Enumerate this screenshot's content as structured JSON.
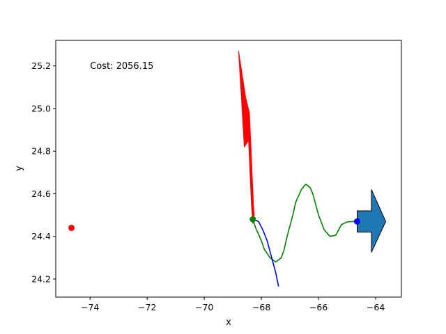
{
  "chart_data": {
    "type": "line",
    "title": "",
    "xlabel": "x",
    "ylabel": "y",
    "xlim": [
      -75.2,
      -63.1
    ],
    "ylim": [
      24.115,
      25.32
    ],
    "x_ticks": [
      -74,
      -72,
      -70,
      -68,
      -66,
      -64
    ],
    "x_tick_labels": [
      "−74",
      "−72",
      "−70",
      "−68",
      "−66",
      "−64"
    ],
    "y_ticks": [
      24.2,
      24.4,
      24.6,
      24.8,
      25.0,
      25.2
    ],
    "y_tick_labels": [
      "24.2",
      "24.4",
      "24.6",
      "24.8",
      "25.0",
      "25.2"
    ],
    "grid": false,
    "annotation": {
      "text": "Cost: 2056.15",
      "x": -74.0,
      "y": 25.2
    },
    "colors": {
      "green_path": "#008000",
      "blue_path": "#0000ff",
      "red_shape": "#ff0000",
      "blue_arrow_fill": "#1f77b4",
      "blue_arrow_edge": "#000000",
      "start_marker": "#008000",
      "goal_marker": "#0000ff",
      "red_marker": "#ff0000"
    },
    "series": [
      {
        "kind": "line",
        "color_key": "green_path",
        "x": [
          -68.3,
          -68.2,
          -68.1,
          -68.0,
          -67.9,
          -67.7,
          -67.5,
          -67.3,
          -67.2,
          -67.1,
          -67.0,
          -66.9,
          -66.8,
          -66.6,
          -66.45,
          -66.3,
          -66.2,
          -66.1,
          -66.0,
          -65.8,
          -65.6,
          -65.4,
          -65.3,
          -65.2,
          -65.0,
          -64.8,
          -64.6
        ],
        "y": [
          24.48,
          24.44,
          24.41,
          24.38,
          24.34,
          24.3,
          24.28,
          24.3,
          24.34,
          24.4,
          24.45,
          24.5,
          24.56,
          24.62,
          24.645,
          24.63,
          24.6,
          24.55,
          24.5,
          24.43,
          24.4,
          24.405,
          24.43,
          24.455,
          24.468,
          24.47,
          24.47
        ]
      },
      {
        "kind": "line",
        "color_key": "blue_path",
        "x": [
          -68.3,
          -68.1,
          -67.95,
          -67.8,
          -67.7,
          -67.6,
          -67.5,
          -67.4
        ],
        "y": [
          24.48,
          24.47,
          24.43,
          24.38,
          24.33,
          24.28,
          24.23,
          24.165
        ]
      },
      {
        "kind": "polygon",
        "color_key": "red_shape",
        "x": [
          -68.8,
          -68.55,
          -68.42,
          -68.28,
          -68.25,
          -68.3,
          -68.35,
          -68.45,
          -68.6,
          -68.7
        ],
        "y": [
          25.27,
          25.05,
          24.98,
          24.55,
          24.5,
          24.46,
          24.55,
          24.85,
          24.82,
          25.05
        ]
      },
      {
        "kind": "polygon",
        "color_key": "blue_arrow_fill",
        "x": [
          -64.65,
          -64.65,
          -64.15,
          -64.15,
          -63.65,
          -64.15,
          -64.15,
          -64.65
        ],
        "y": [
          24.42,
          24.52,
          24.52,
          24.62,
          24.47,
          24.325,
          24.42,
          24.42
        ]
      },
      {
        "kind": "point",
        "color_key": "start_marker",
        "x": [
          -68.3
        ],
        "y": [
          24.48
        ]
      },
      {
        "kind": "point",
        "color_key": "goal_marker",
        "x": [
          -64.65
        ],
        "y": [
          24.47
        ]
      },
      {
        "kind": "point",
        "color_key": "red_marker",
        "x": [
          -74.65
        ],
        "y": [
          24.44
        ]
      }
    ]
  }
}
